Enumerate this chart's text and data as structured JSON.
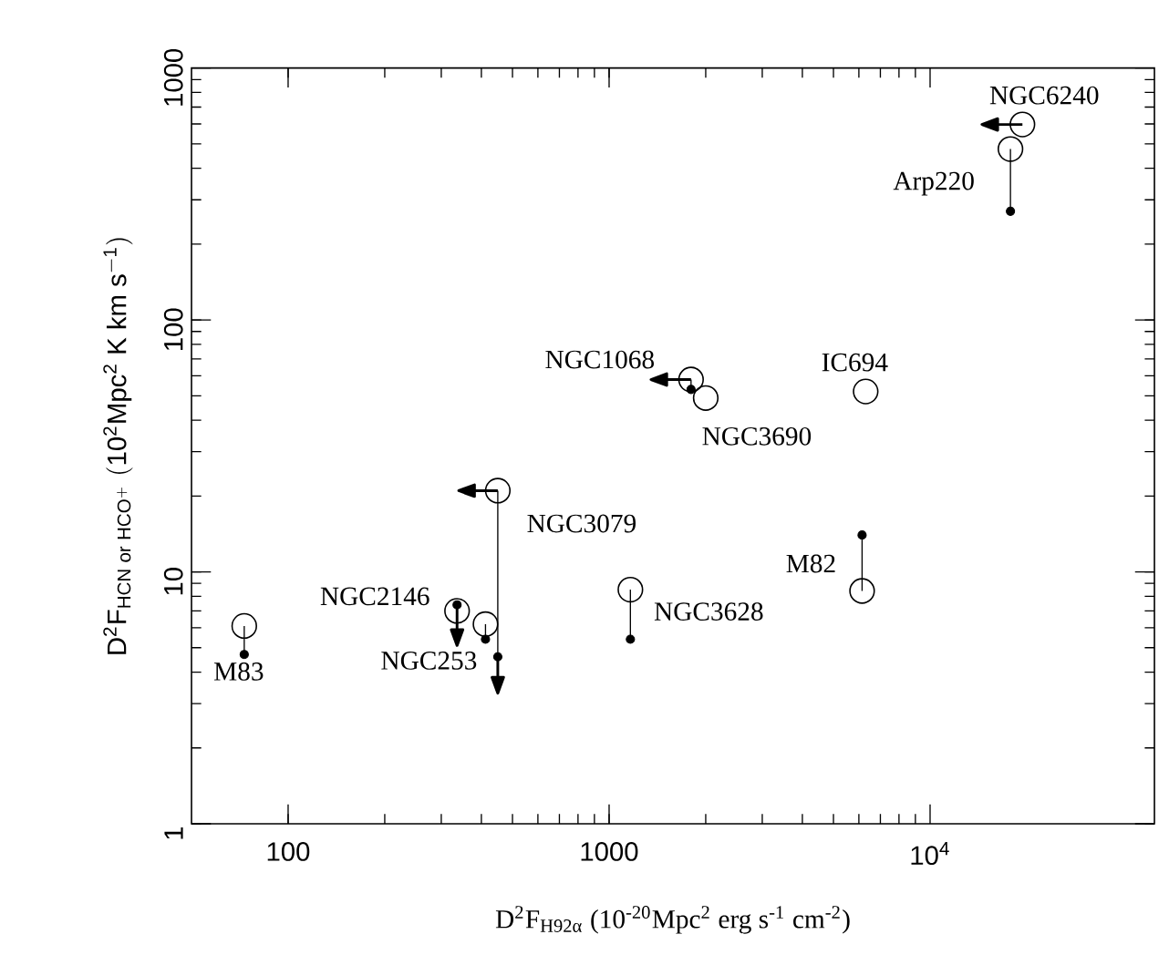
{
  "chart_data": {
    "type": "scatter",
    "xlabel": "D$^{2}$F$_{H92α}$ (10$^{-20}$Mpc$^{2}$ erg s$^{-1}$ cm$^{-2}$)",
    "ylabel": "\\mathrm{D^{2}F_{HCN\\;or\\;HCO^{+}}\\;(10^{2}Mpc^{2}\\;K\\;km\\;s^{-1})}",
    "log": "xy",
    "xlim": [
      50,
      50000
    ],
    "ylim": [
      1,
      1000
    ],
    "xticks": [
      100,
      1000,
      {
        "value": 10000,
        "label": "10$^{4}$"
      }
    ],
    "yticks": [
      1,
      10,
      100,
      1000
    ],
    "grid": false,
    "series": [
      {
        "color": "#000000",
        "marker": "circle",
        "x": [
          19400,
          17800,
          1800,
          2000,
          6300,
          450,
          336,
          412,
          73,
          1165,
          6140
        ],
        "values": [
          597,
          477,
          58,
          49,
          52,
          21,
          7.0,
          6.2,
          6.1,
          8.5,
          8.4
        ],
        "xerrors": [
          [
            14500,
            19400
          ],
          null,
          [
            1350,
            1800
          ],
          null,
          null,
          [
            340,
            450
          ],
          null,
          null,
          null,
          null,
          null
        ]
      },
      {
        "color": "#000000",
        "marker": "circle",
        "x": [
          17800,
          1800,
          450,
          336,
          412,
          73,
          1165,
          6140
        ],
        "values": [
          270,
          53,
          4.6,
          7.4,
          5.4,
          4.7,
          5.4,
          14
        ],
        "errors": [
          null,
          null,
          [
            3.3,
            4.6
          ],
          [
            5.1,
            7.4
          ],
          null,
          null,
          null,
          null
        ]
      },
      {
        "type": "line",
        "color": "#000000",
        "marker": "none",
        "x": [
          17800,
          17800
        ],
        "values": [
          477,
          270
        ]
      },
      {
        "type": "line",
        "color": "#000000",
        "marker": "none",
        "x": [
          1800,
          1800
        ],
        "values": [
          58,
          53
        ]
      },
      {
        "type": "line",
        "color": "#000000",
        "marker": "none",
        "x": [
          450,
          450
        ],
        "values": [
          21,
          4.6
        ]
      },
      {
        "type": "line",
        "color": "#000000",
        "marker": "none",
        "x": [
          412,
          412
        ],
        "values": [
          6.2,
          5.4
        ]
      },
      {
        "type": "line",
        "color": "#000000",
        "marker": "none",
        "x": [
          73,
          73
        ],
        "values": [
          6.1,
          4.7
        ]
      },
      {
        "type": "line",
        "color": "#000000",
        "marker": "none",
        "x": [
          1165,
          1165
        ],
        "values": [
          8.5,
          5.4
        ]
      },
      {
        "type": "line",
        "color": "#000000",
        "marker": "none",
        "x": [
          6140,
          6140
        ],
        "values": [
          8.4,
          14
        ]
      }
    ],
    "annotations": [
      {
        "text": "NGC6240",
        "x": 19400,
        "y": 597
      },
      {
        "text": "Arp220",
        "x": 17800,
        "y": 477
      },
      {
        "text": "NGC1068",
        "x": 1800,
        "y": 58
      },
      {
        "text": "NGC3690",
        "x": 2000,
        "y": 49
      },
      {
        "text": "IC694",
        "x": 6300,
        "y": 52
      },
      {
        "text": "NGC3079",
        "x": 450,
        "y": 21
      },
      {
        "text": "NGC2146",
        "x": 336,
        "y": 7.0
      },
      {
        "text": "NGC253",
        "x": 412,
        "y": 6.2
      },
      {
        "text": "M83",
        "x": 73,
        "y": 6.1
      },
      {
        "text": "NGC3628",
        "x": 1165,
        "y": 8.5
      },
      {
        "text": "M82",
        "x": 6140,
        "y": 8.4
      }
    ]
  }
}
